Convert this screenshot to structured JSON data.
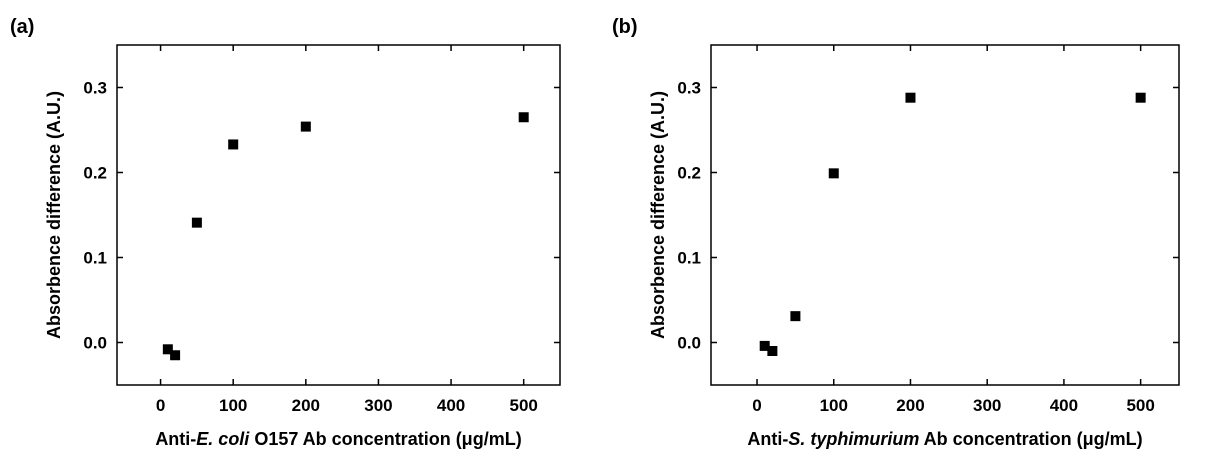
{
  "chart_data": [
    {
      "panel_label": "(a)",
      "type": "scatter",
      "xlabel": {
        "prefix": "Anti-",
        "italic": "E. coli",
        "suffix": " O157 Ab concentration (μg/mL)"
      },
      "ylabel": "Absorbence difference (A.U.)",
      "xlim": [
        -60,
        550
      ],
      "ylim": [
        -0.05,
        0.35
      ],
      "xticks": [
        0,
        100,
        200,
        300,
        400,
        500
      ],
      "yticks": [
        0.0,
        0.1,
        0.2,
        0.3
      ],
      "xtick_labels": [
        "0",
        "100",
        "200",
        "300",
        "400",
        "500"
      ],
      "ytick_labels": [
        "0.0",
        "0.1",
        "0.2",
        "0.3"
      ],
      "grid": false,
      "marker": "square",
      "x": [
        10,
        20,
        50,
        100,
        200,
        500
      ],
      "y": [
        -0.008,
        -0.015,
        0.141,
        0.233,
        0.254,
        0.265
      ]
    },
    {
      "panel_label": "(b)",
      "type": "scatter",
      "xlabel": {
        "prefix": "Anti-",
        "italic": "S. typhimurium",
        "suffix": " Ab concentration (μg/mL)"
      },
      "ylabel": "Absorbence difference (A.U.)",
      "xlim": [
        -60,
        550
      ],
      "ylim": [
        -0.05,
        0.35
      ],
      "xticks": [
        0,
        100,
        200,
        300,
        400,
        500
      ],
      "yticks": [
        0.0,
        0.1,
        0.2,
        0.3
      ],
      "xtick_labels": [
        "0",
        "100",
        "200",
        "300",
        "400",
        "500"
      ],
      "ytick_labels": [
        "0.0",
        "0.1",
        "0.2",
        "0.3"
      ],
      "grid": false,
      "marker": "square",
      "x": [
        10,
        20,
        50,
        100,
        200,
        500
      ],
      "y": [
        -0.004,
        -0.01,
        0.031,
        0.199,
        0.288,
        0.288
      ]
    }
  ]
}
